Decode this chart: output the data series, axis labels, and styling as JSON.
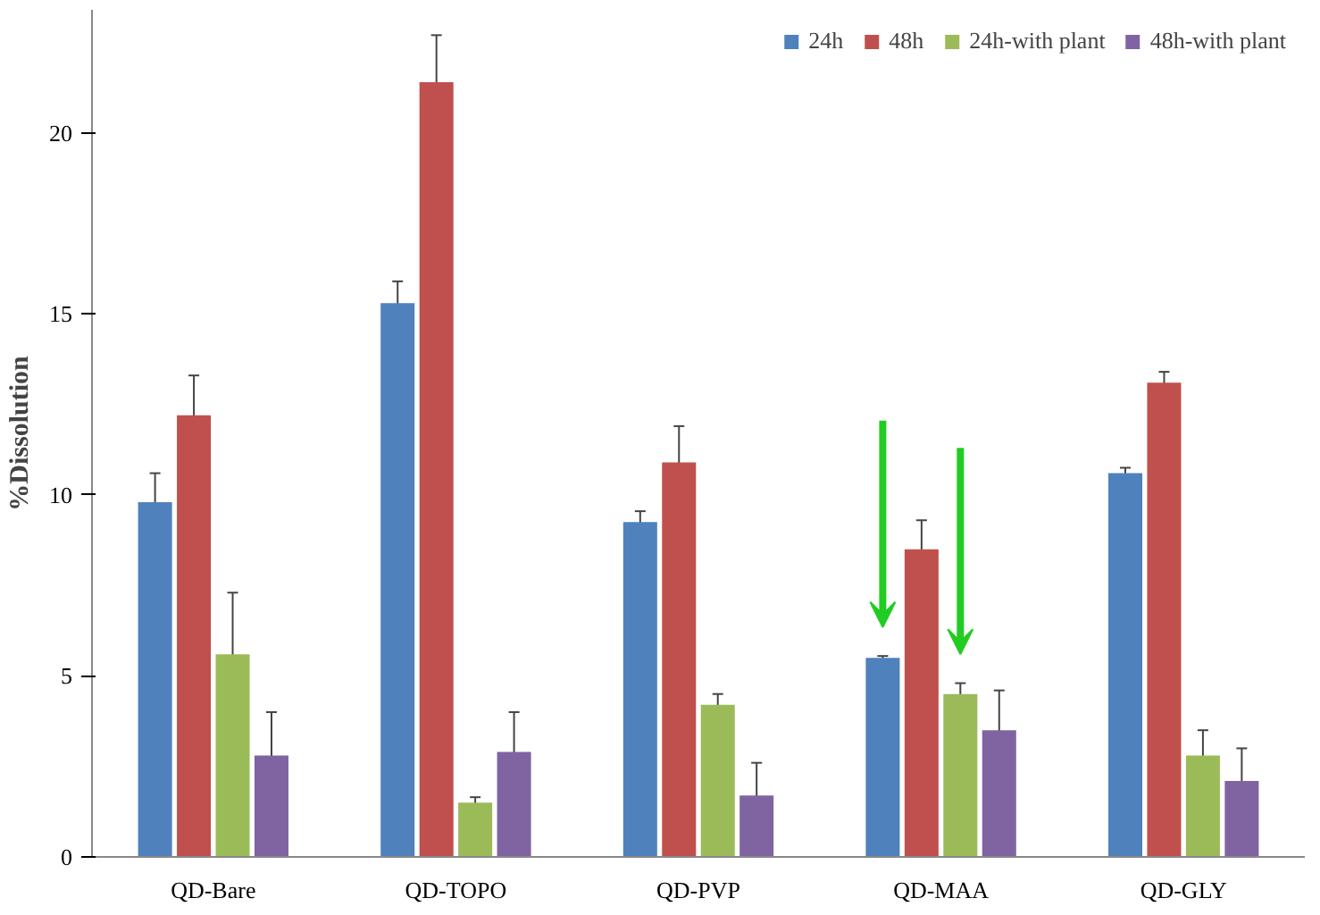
{
  "chart_data": {
    "type": "bar",
    "ylabel": "%Dissolution",
    "categories": [
      "QD-Bare",
      "QD-TOPO",
      "QD-PVP",
      "QD-MAA",
      "QD-GLY"
    ],
    "series": [
      {
        "name": "24h",
        "color": "#4f81bd",
        "values": [
          9.8,
          15.3,
          9.25,
          5.5,
          10.6
        ],
        "errors": [
          0.8,
          0.6,
          0.3,
          0.05,
          0.15
        ]
      },
      {
        "name": "48h",
        "color": "#c0504d",
        "values": [
          12.2,
          21.4,
          10.9,
          8.5,
          13.1
        ],
        "errors": [
          1.1,
          1.3,
          1.0,
          0.8,
          0.3
        ]
      },
      {
        "name": "24h-with plant",
        "color": "#9bbb59",
        "values": [
          5.6,
          1.5,
          4.2,
          4.5,
          2.8
        ],
        "errors": [
          1.7,
          0.15,
          0.3,
          0.3,
          0.7
        ]
      },
      {
        "name": "48h-with plant",
        "color": "#8064a2",
        "values": [
          2.8,
          2.9,
          1.7,
          3.5,
          2.1
        ],
        "errors": [
          1.2,
          1.1,
          0.9,
          1.1,
          0.9
        ]
      }
    ],
    "ylim": [
      0,
      23.4
    ],
    "yticks": [
      0,
      5,
      10,
      15,
      20
    ],
    "grid": false,
    "legend": "top right"
  }
}
